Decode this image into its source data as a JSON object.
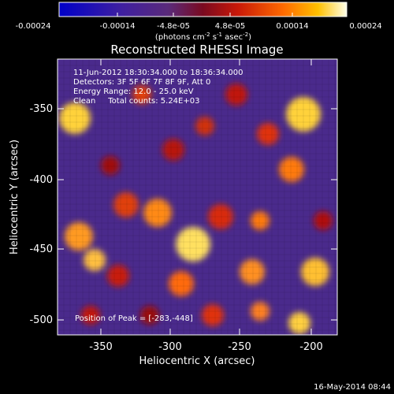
{
  "colorbar": {
    "tick_labels": [
      "-0.00024",
      "-0.00014",
      "-4.8e-05",
      "4.8e-05",
      "0.00014",
      "0.00024"
    ],
    "unit_main": "(photons cm",
    "unit_sup1": "-2",
    "unit_mid": " s",
    "unit_sup2": "-1",
    "unit_end": " asec",
    "unit_sup3": "-2",
    "unit_close": ")"
  },
  "image": {
    "title": "Reconstructed RHESSI Image",
    "info_lines": [
      "11-Jun-2012 18:30:34.000 to 18:36:34.000",
      "Detectors: 3F 5F 6F 7F 8F 9F, Att 0",
      "Energy Range: 12.0 - 25.0 keV",
      "Clean     Total counts: 5.24E+03"
    ],
    "peak_text": "Position of Peak = [-283,-448]",
    "xlabel": "Heliocentric X (arcsec)",
    "ylabel": "Heliocentric Y (arcsec)",
    "x_ticks": [
      "-350",
      "-300",
      "-250",
      "-200"
    ],
    "y_ticks": [
      "-350",
      "-400",
      "-450",
      "-500"
    ],
    "footer_date": "16-May-2014 08:44",
    "peak": {
      "x": -283,
      "y": -448
    }
  }
}
